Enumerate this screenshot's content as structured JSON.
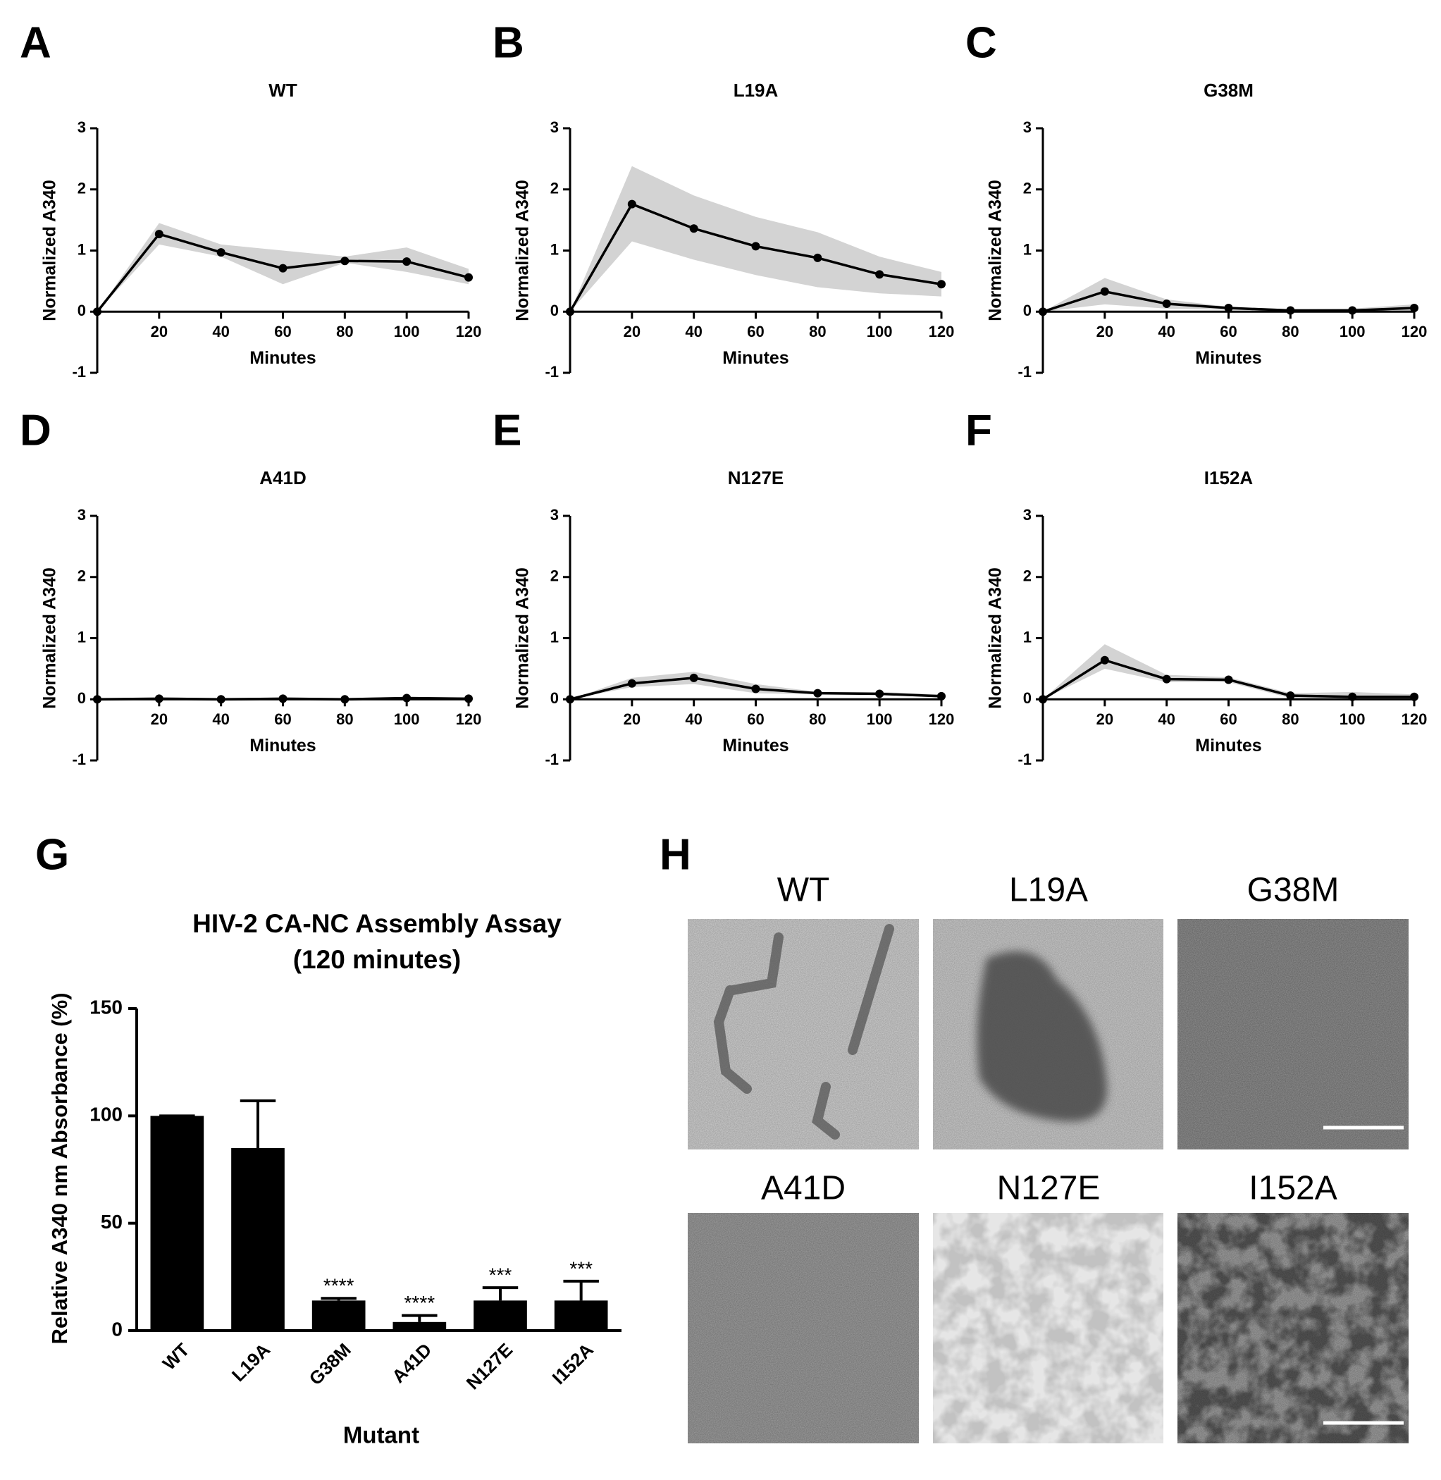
{
  "chart_data": [
    {
      "type": "line",
      "panel": "A",
      "title": "WT",
      "xlabel": "Minutes",
      "ylabel": "Normalized A340",
      "x": [
        0,
        20,
        40,
        60,
        80,
        100,
        120
      ],
      "values": [
        0,
        1.27,
        0.97,
        0.71,
        0.83,
        0.82,
        0.56
      ],
      "lower": [
        0,
        1.1,
        0.9,
        0.45,
        0.8,
        0.65,
        0.45
      ],
      "upper": [
        0,
        1.45,
        1.1,
        1.0,
        0.9,
        1.05,
        0.7
      ],
      "color": "#000000",
      "band_color": "#d3d3d3",
      "xlim": [
        0,
        120
      ],
      "xticks": [
        20,
        40,
        60,
        80,
        100,
        120
      ],
      "ylim": [
        -1,
        3
      ],
      "yticks": [
        -1,
        0,
        1,
        2,
        3
      ]
    },
    {
      "type": "line",
      "panel": "B",
      "title": "L19A",
      "xlabel": "Minutes",
      "ylabel": "Normalized A340",
      "x": [
        0,
        20,
        40,
        60,
        80,
        100,
        120
      ],
      "values": [
        0,
        1.76,
        1.36,
        1.07,
        0.88,
        0.61,
        0.45
      ],
      "lower": [
        0,
        1.15,
        0.85,
        0.6,
        0.4,
        0.3,
        0.25
      ],
      "upper": [
        0,
        2.38,
        1.9,
        1.55,
        1.3,
        0.9,
        0.65
      ],
      "color": "#000000",
      "band_color": "#d3d3d3",
      "xlim": [
        0,
        120
      ],
      "xticks": [
        20,
        40,
        60,
        80,
        100,
        120
      ],
      "ylim": [
        -1,
        3
      ],
      "yticks": [
        -1,
        0,
        1,
        2,
        3
      ]
    },
    {
      "type": "line",
      "panel": "C",
      "title": "G38M",
      "xlabel": "Minutes",
      "ylabel": "Normalized A340",
      "x": [
        0,
        20,
        40,
        60,
        80,
        100,
        120
      ],
      "values": [
        0,
        0.33,
        0.13,
        0.06,
        0.02,
        0.02,
        0.06
      ],
      "lower": [
        0,
        0.12,
        0.05,
        0.03,
        0.01,
        0.01,
        0.01
      ],
      "upper": [
        0,
        0.55,
        0.2,
        0.08,
        0.04,
        0.05,
        0.12
      ],
      "color": "#000000",
      "band_color": "#d3d3d3",
      "xlim": [
        0,
        120
      ],
      "xticks": [
        20,
        40,
        60,
        80,
        100,
        120
      ],
      "ylim": [
        -1,
        3
      ],
      "yticks": [
        -1,
        0,
        1,
        2,
        3
      ]
    },
    {
      "type": "line",
      "panel": "D",
      "title": "A41D",
      "xlabel": "Minutes",
      "ylabel": "Normalized A340",
      "x": [
        0,
        20,
        40,
        60,
        80,
        100,
        120
      ],
      "values": [
        0,
        0.01,
        0,
        0.01,
        0,
        0.02,
        0.01
      ],
      "lower": [
        0,
        -0.01,
        -0.01,
        -0.01,
        -0.01,
        -0.01,
        -0.01
      ],
      "upper": [
        0,
        0.03,
        0.02,
        0.03,
        0.02,
        0.04,
        0.03
      ],
      "color": "#000000",
      "band_color": "#d3d3d3",
      "xlim": [
        0,
        120
      ],
      "xticks": [
        20,
        40,
        60,
        80,
        100,
        120
      ],
      "ylim": [
        -1,
        3
      ],
      "yticks": [
        -1,
        0,
        1,
        2,
        3
      ]
    },
    {
      "type": "line",
      "panel": "E",
      "title": "N127E",
      "xlabel": "Minutes",
      "ylabel": "Normalized A340",
      "x": [
        0,
        20,
        40,
        60,
        80,
        100,
        120
      ],
      "values": [
        0,
        0.26,
        0.35,
        0.17,
        0.1,
        0.09,
        0.05
      ],
      "lower": [
        0,
        0.2,
        0.25,
        0.1,
        0.08,
        0.07,
        0.03
      ],
      "upper": [
        0,
        0.35,
        0.45,
        0.25,
        0.12,
        0.12,
        0.08
      ],
      "color": "#000000",
      "band_color": "#d3d3d3",
      "xlim": [
        0,
        120
      ],
      "xticks": [
        20,
        40,
        60,
        80,
        100,
        120
      ],
      "ylim": [
        -1,
        3
      ],
      "yticks": [
        -1,
        0,
        1,
        2,
        3
      ]
    },
    {
      "type": "line",
      "panel": "F",
      "title": "I152A",
      "xlabel": "Minutes",
      "ylabel": "Normalized A340",
      "x": [
        0,
        20,
        40,
        60,
        80,
        100,
        120
      ],
      "values": [
        0,
        0.64,
        0.33,
        0.32,
        0.06,
        0.04,
        0.04
      ],
      "lower": [
        0,
        0.5,
        0.28,
        0.28,
        0.02,
        0.0,
        0.0
      ],
      "upper": [
        0,
        0.9,
        0.4,
        0.36,
        0.1,
        0.12,
        0.08
      ],
      "color": "#000000",
      "band_color": "#d3d3d3",
      "xlim": [
        0,
        120
      ],
      "xticks": [
        20,
        40,
        60,
        80,
        100,
        120
      ],
      "ylim": [
        -1,
        3
      ],
      "yticks": [
        -1,
        0,
        1,
        2,
        3
      ]
    },
    {
      "type": "bar",
      "panel": "G",
      "title": "HIV-2 CA-NC Assembly Assay",
      "subtitle": "(120 minutes)",
      "xlabel": "Mutant",
      "ylabel": "Relative A340 nm Absorbance (%)",
      "categories": [
        "WT",
        "L19A",
        "G38M",
        "A41D",
        "N127E",
        "I152A"
      ],
      "values": [
        100,
        85,
        14,
        4,
        14,
        14
      ],
      "errors": [
        0,
        22,
        1,
        3,
        6,
        9
      ],
      "annotations": [
        null,
        null,
        "****",
        "****",
        "***",
        "***"
      ],
      "color": "#000000",
      "ylim": [
        0,
        150
      ],
      "yticks": [
        0,
        50,
        100,
        150
      ]
    }
  ],
  "micrographs": {
    "panel": "H",
    "labels": [
      "WT",
      "L19A",
      "G38M",
      "A41D",
      "N127E",
      "I152A"
    ]
  }
}
